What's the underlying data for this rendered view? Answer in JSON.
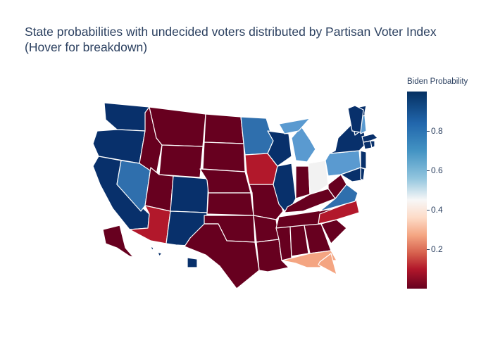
{
  "title_line1": "State probabilities with undecided voters distributed by Partisan Voter Index",
  "title_line2": "(Hover for breakdown)",
  "colorbar": {
    "title": "Biden Probability",
    "ticks": [
      "0.8",
      "0.6",
      "0.4",
      "0.2"
    ],
    "tick_values": [
      0.8,
      0.6,
      0.4,
      0.2
    ]
  },
  "colors": {
    "dem_strong": "#08306b",
    "dem_lean": "#2f6fad",
    "dem_tilt": "#5a9ad0",
    "tossup": "#f2f2f2",
    "rep_tilt": "#f4a582",
    "rep_lean": "#b2182b",
    "rep_strong": "#67001f"
  },
  "chart_data": {
    "type": "choropleth",
    "scope": "usa",
    "colorscale": "RdBu",
    "zmin": 0,
    "zmax": 1
  }
}
